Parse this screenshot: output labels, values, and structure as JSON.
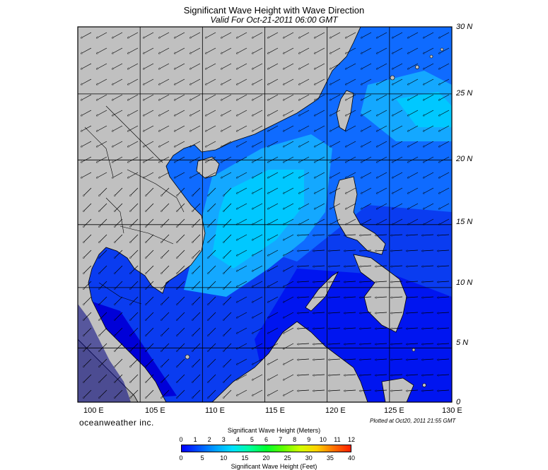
{
  "header": {
    "title": "Significant Wave Height with Wave Direction",
    "subtitle": "Valid For Oct-21-2011 06:00 GMT"
  },
  "map": {
    "lat_labels": [
      "30 N",
      "25 N",
      "20 N",
      "15 N",
      "10 N",
      "5 N",
      "0"
    ],
    "lon_labels": [
      "100 E",
      "105 E",
      "110 E",
      "115 E",
      "120 E",
      "125 E",
      "130 E"
    ],
    "extent": {
      "lon": [
        100,
        130
      ],
      "lat": [
        0,
        30
      ]
    },
    "grid_interval_deg": 5,
    "land_color": "#c0c0c0",
    "grid_color": "#000000",
    "wave_direction": "toward southwest (arrows point SW)",
    "wave_colors": {
      "low": "#0000ff",
      "mid": "#0f6bff",
      "high": "#00c8ff"
    }
  },
  "footer": {
    "brand": "oceanweather inc.",
    "plotted": "Plotted at Oct20, 2011 21:55 GMT"
  },
  "scale": {
    "meters_title": "Significant Wave Height (Meters)",
    "feet_title": "Significant Wave Height (Feet)",
    "meters_ticks": [
      "0",
      "1",
      "2",
      "3",
      "4",
      "5",
      "6",
      "7",
      "8",
      "9",
      "10",
      "11",
      "12"
    ],
    "feet_ticks": [
      "0",
      "5",
      "10",
      "15",
      "20",
      "25",
      "30",
      "35",
      "40"
    ],
    "colors": [
      "#0000ff",
      "#0050ff",
      "#00a0ff",
      "#00e0ff",
      "#00ffa0",
      "#00ff30",
      "#60ff00",
      "#d0ff00",
      "#ffd000",
      "#ff7000",
      "#ff2000"
    ]
  }
}
